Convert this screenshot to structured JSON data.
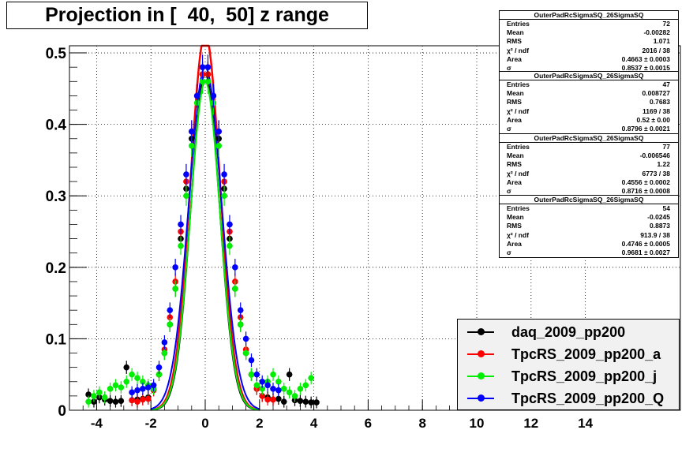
{
  "title": "Projection in [  40,  50] z range",
  "stats": [
    {
      "name": "OuterPadRcSigmaSQ_26SigmaSQ",
      "rows": [
        {
          "label": "Entries",
          "value": "72"
        },
        {
          "label": "Mean",
          "value": "-0.00282"
        },
        {
          "label": "RMS",
          "value": "1.071"
        },
        {
          "label": "χ² / ndf",
          "value": "2016 / 38"
        },
        {
          "label": "Area",
          "value": "0.4663 ± 0.0003"
        },
        {
          "label": "σ",
          "value": "0.8537 ± 0.0015"
        }
      ]
    },
    {
      "name": "OuterPadRcSigmaSQ_26SigmaSQ",
      "rows": [
        {
          "label": "Entries",
          "value": "47"
        },
        {
          "label": "Mean",
          "value": "0.008727"
        },
        {
          "label": "RMS",
          "value": "0.7683"
        },
        {
          "label": "χ² / ndf",
          "value": "1169 / 38"
        },
        {
          "label": "Area",
          "value": "0.52 ± 0.00"
        },
        {
          "label": "σ",
          "value": "0.8796 ± 0.0021"
        }
      ]
    },
    {
      "name": "OuterPadRcSigmaSQ_26SigmaSQ",
      "rows": [
        {
          "label": "Entries",
          "value": "77"
        },
        {
          "label": "Mean",
          "value": "-0.006546"
        },
        {
          "label": "RMS",
          "value": "1.22"
        },
        {
          "label": "χ² / ndf",
          "value": "6773 / 38"
        },
        {
          "label": "Area",
          "value": "0.4556 ± 0.0002"
        },
        {
          "label": "σ",
          "value": "0.8716 ± 0.0008"
        }
      ]
    },
    {
      "name": "OuterPadRcSigmaSQ_26SigmaSQ",
      "rows": [
        {
          "label": "Entries",
          "value": "54"
        },
        {
          "label": "Mean",
          "value": "-0.0245"
        },
        {
          "label": "RMS",
          "value": "0.8873"
        },
        {
          "label": "χ² / ndf",
          "value": "913.9 / 38"
        },
        {
          "label": "Area",
          "value": "0.4746 ± 0.0005"
        },
        {
          "label": "σ",
          "value": "0.9681 ± 0.0027"
        }
      ]
    }
  ],
  "chart_data": {
    "type": "scatter",
    "title": "Projection in [  40,  50] z range",
    "xlabel": "",
    "ylabel": "",
    "xlim": [
      -5,
      17.5
    ],
    "ylim": [
      0,
      0.51
    ],
    "xticks": [
      -4,
      -2,
      0,
      2,
      4,
      6,
      8,
      10,
      12,
      14
    ],
    "yticks": [
      0,
      0.1,
      0.2,
      0.3,
      0.4,
      0.5
    ],
    "ytick_labels": [
      "0",
      "0.1",
      "0.2",
      "0.3",
      "0.4",
      "0.5"
    ],
    "grid": true,
    "legend_position": "bottom-right",
    "series": [
      {
        "name": "daq_2009_pp200",
        "color": "#000000",
        "fit_sigma": 0.8537,
        "fit_area": 0.4663,
        "x": [
          -4.3,
          -4.1,
          -3.9,
          -3.7,
          -3.5,
          -3.3,
          -3.1,
          -2.9,
          -2.7,
          -2.5,
          -2.3,
          -2.1,
          -1.9,
          -1.7,
          -1.5,
          -1.3,
          -1.1,
          -0.9,
          -0.7,
          -0.5,
          -0.3,
          -0.1,
          0.1,
          0.3,
          0.5,
          0.7,
          0.9,
          1.1,
          1.3,
          1.5,
          1.7,
          1.9,
          2.1,
          2.3,
          2.5,
          2.7,
          2.9,
          3.1,
          3.3,
          3.5,
          3.7,
          3.9,
          4.1
        ],
        "y": [
          0.022,
          0.012,
          0.018,
          0.015,
          0.013,
          0.012,
          0.013,
          0.06,
          0.014,
          0.015,
          0.016,
          0.018,
          0.03,
          0.05,
          0.08,
          0.12,
          0.17,
          0.24,
          0.31,
          0.38,
          0.44,
          0.47,
          0.47,
          0.44,
          0.38,
          0.31,
          0.24,
          0.17,
          0.12,
          0.08,
          0.05,
          0.03,
          0.02,
          0.018,
          0.015,
          0.016,
          0.012,
          0.05,
          0.014,
          0.013,
          0.012,
          0.011,
          0.011
        ]
      },
      {
        "name": "TpcRS_2009_pp200_a",
        "color": "#ff0000",
        "fit_sigma": 0.8796,
        "fit_area": 0.52,
        "x": [
          -2.7,
          -2.5,
          -2.3,
          -2.1,
          -1.9,
          -1.7,
          -1.5,
          -1.3,
          -1.1,
          -0.9,
          -0.7,
          -0.5,
          -0.3,
          -0.1,
          0.1,
          0.3,
          0.5,
          0.7,
          0.9,
          1.1,
          1.3,
          1.5,
          1.7,
          1.9,
          2.1,
          2.3,
          2.5
        ],
        "y": [
          0.014,
          0.012,
          0.015,
          0.016,
          0.028,
          0.05,
          0.085,
          0.13,
          0.18,
          0.25,
          0.32,
          0.39,
          0.44,
          0.47,
          0.47,
          0.44,
          0.39,
          0.32,
          0.25,
          0.18,
          0.13,
          0.085,
          0.05,
          0.03,
          0.02,
          0.015,
          0.015
        ]
      },
      {
        "name": "TpcRS_2009_pp200_j",
        "color": "#00ee00",
        "fit_sigma": 0.8716,
        "fit_area": 0.4556,
        "x": [
          -4.3,
          -4.1,
          -3.9,
          -3.7,
          -3.5,
          -3.3,
          -3.1,
          -2.9,
          -2.7,
          -2.5,
          -2.3,
          -2.1,
          -1.9,
          -1.7,
          -1.5,
          -1.3,
          -1.1,
          -0.9,
          -0.7,
          -0.5,
          -0.3,
          -0.1,
          0.1,
          0.3,
          0.5,
          0.7,
          0.9,
          1.1,
          1.3,
          1.5,
          1.7,
          1.9,
          2.1,
          2.3,
          2.5,
          2.7,
          2.9,
          3.1,
          3.3,
          3.5,
          3.7,
          3.9
        ],
        "y": [
          0.012,
          0.02,
          0.025,
          0.018,
          0.03,
          0.035,
          0.032,
          0.04,
          0.05,
          0.045,
          0.04,
          0.035,
          0.03,
          0.05,
          0.08,
          0.12,
          0.17,
          0.23,
          0.3,
          0.37,
          0.43,
          0.46,
          0.46,
          0.43,
          0.37,
          0.3,
          0.23,
          0.17,
          0.12,
          0.08,
          0.05,
          0.035,
          0.03,
          0.04,
          0.05,
          0.04,
          0.03,
          0.025,
          0.02,
          0.03,
          0.035,
          0.045
        ]
      },
      {
        "name": "TpcRS_2009_pp200_Q",
        "color": "#0000ff",
        "fit_sigma": 0.9681,
        "fit_area": 0.4746,
        "x": [
          -2.7,
          -2.5,
          -2.3,
          -2.1,
          -1.9,
          -1.7,
          -1.5,
          -1.3,
          -1.1,
          -0.9,
          -0.7,
          -0.5,
          -0.3,
          -0.1,
          0.1,
          0.3,
          0.5,
          0.7,
          0.9,
          1.1,
          1.3,
          1.5,
          1.7,
          1.9,
          2.1,
          2.3,
          2.5,
          2.7
        ],
        "y": [
          0.025,
          0.028,
          0.03,
          0.032,
          0.035,
          0.06,
          0.095,
          0.14,
          0.2,
          0.26,
          0.33,
          0.39,
          0.44,
          0.48,
          0.48,
          0.44,
          0.39,
          0.33,
          0.26,
          0.2,
          0.14,
          0.1,
          0.07,
          0.05,
          0.04,
          0.035,
          0.03,
          0.028
        ]
      }
    ]
  }
}
